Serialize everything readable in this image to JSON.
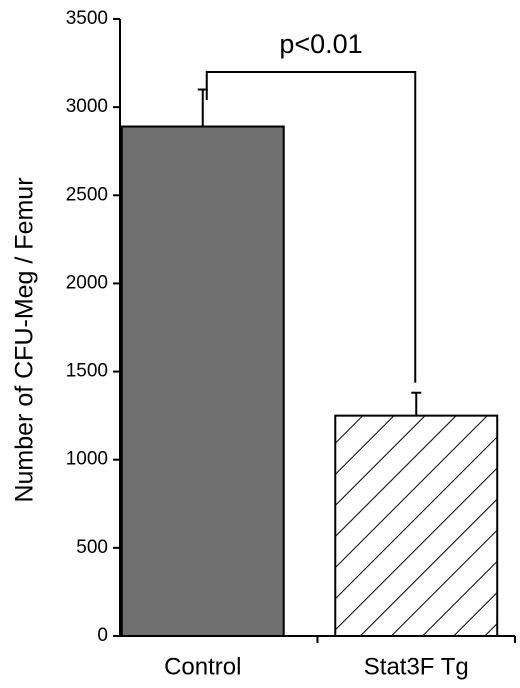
{
  "chart_data": {
    "type": "bar",
    "ylabel": "Number of CFU-Meg / Femur",
    "categories": [
      "Control",
      "Stat3F Tg"
    ],
    "values": [
      2890,
      1250
    ],
    "errors": [
      210,
      130
    ],
    "colors": [
      "#707070",
      "#ffffff"
    ],
    "patterns": [
      "solid",
      "hatch"
    ],
    "ylim": [
      0,
      3500
    ],
    "yticks": [
      0,
      500,
      1000,
      1500,
      2000,
      2500,
      3000,
      3500
    ],
    "annotation": "p<0.01"
  }
}
